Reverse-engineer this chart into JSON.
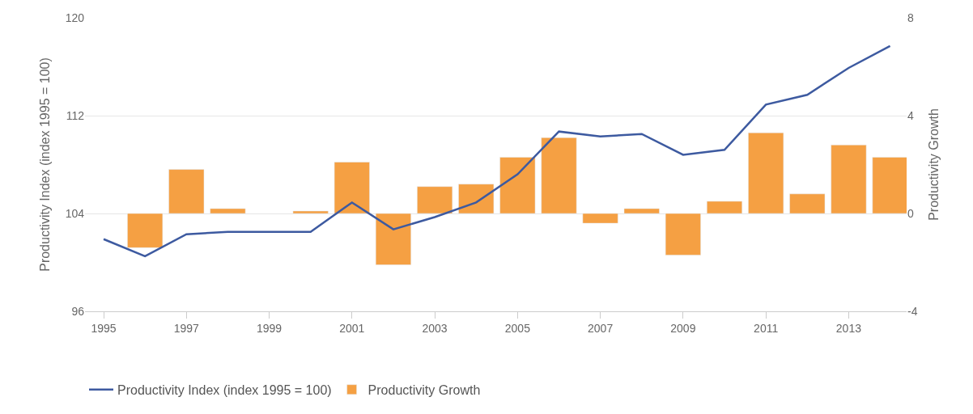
{
  "chart_data": {
    "type": "line",
    "x": [
      1995,
      1996,
      1997,
      1998,
      1999,
      2000,
      2001,
      2002,
      2003,
      2004,
      2005,
      2006,
      2007,
      2008,
      2009,
      2010,
      2011,
      2012,
      2013,
      2014
    ],
    "series": [
      {
        "name": "Productivity Index (index 1995 = 100)",
        "color": "#3d5aa0",
        "values": [
          101.9,
          100.5,
          102.3,
          102.5,
          102.5,
          102.5,
          104.9,
          102.7,
          103.7,
          104.9,
          107.2,
          110.7,
          110.3,
          110.5,
          108.8,
          109.2,
          112.9,
          113.7,
          115.9,
          117.7
        ]
      },
      {
        "name": "Productivity Growth",
        "color": "#f5a043",
        "type": "bar",
        "axis": "y2",
        "values": [
          null,
          -1.4,
          1.8,
          0.2,
          null,
          0.1,
          2.1,
          -2.1,
          1.1,
          1.2,
          2.3,
          3.1,
          -0.4,
          0.2,
          -1.7,
          0.5,
          3.3,
          0.8,
          2.8,
          2.3
        ]
      }
    ],
    "ylabel": "Productivity Index (index 1995 = 100)",
    "y2label": "Productivity Growth",
    "xlim": [
      1994.55,
      2014.4
    ],
    "xticks": [
      1995,
      1997,
      1999,
      2001,
      2003,
      2005,
      2007,
      2009,
      2011,
      2013
    ],
    "ylim": [
      96,
      120
    ],
    "yticks": [
      96,
      104,
      112,
      120
    ],
    "y2lim": [
      -4,
      8
    ],
    "y2ticks": [
      -4,
      0,
      4,
      8
    ],
    "grid": "y",
    "legend": "bottom left",
    "marker": "none",
    "line_style": "solid"
  }
}
